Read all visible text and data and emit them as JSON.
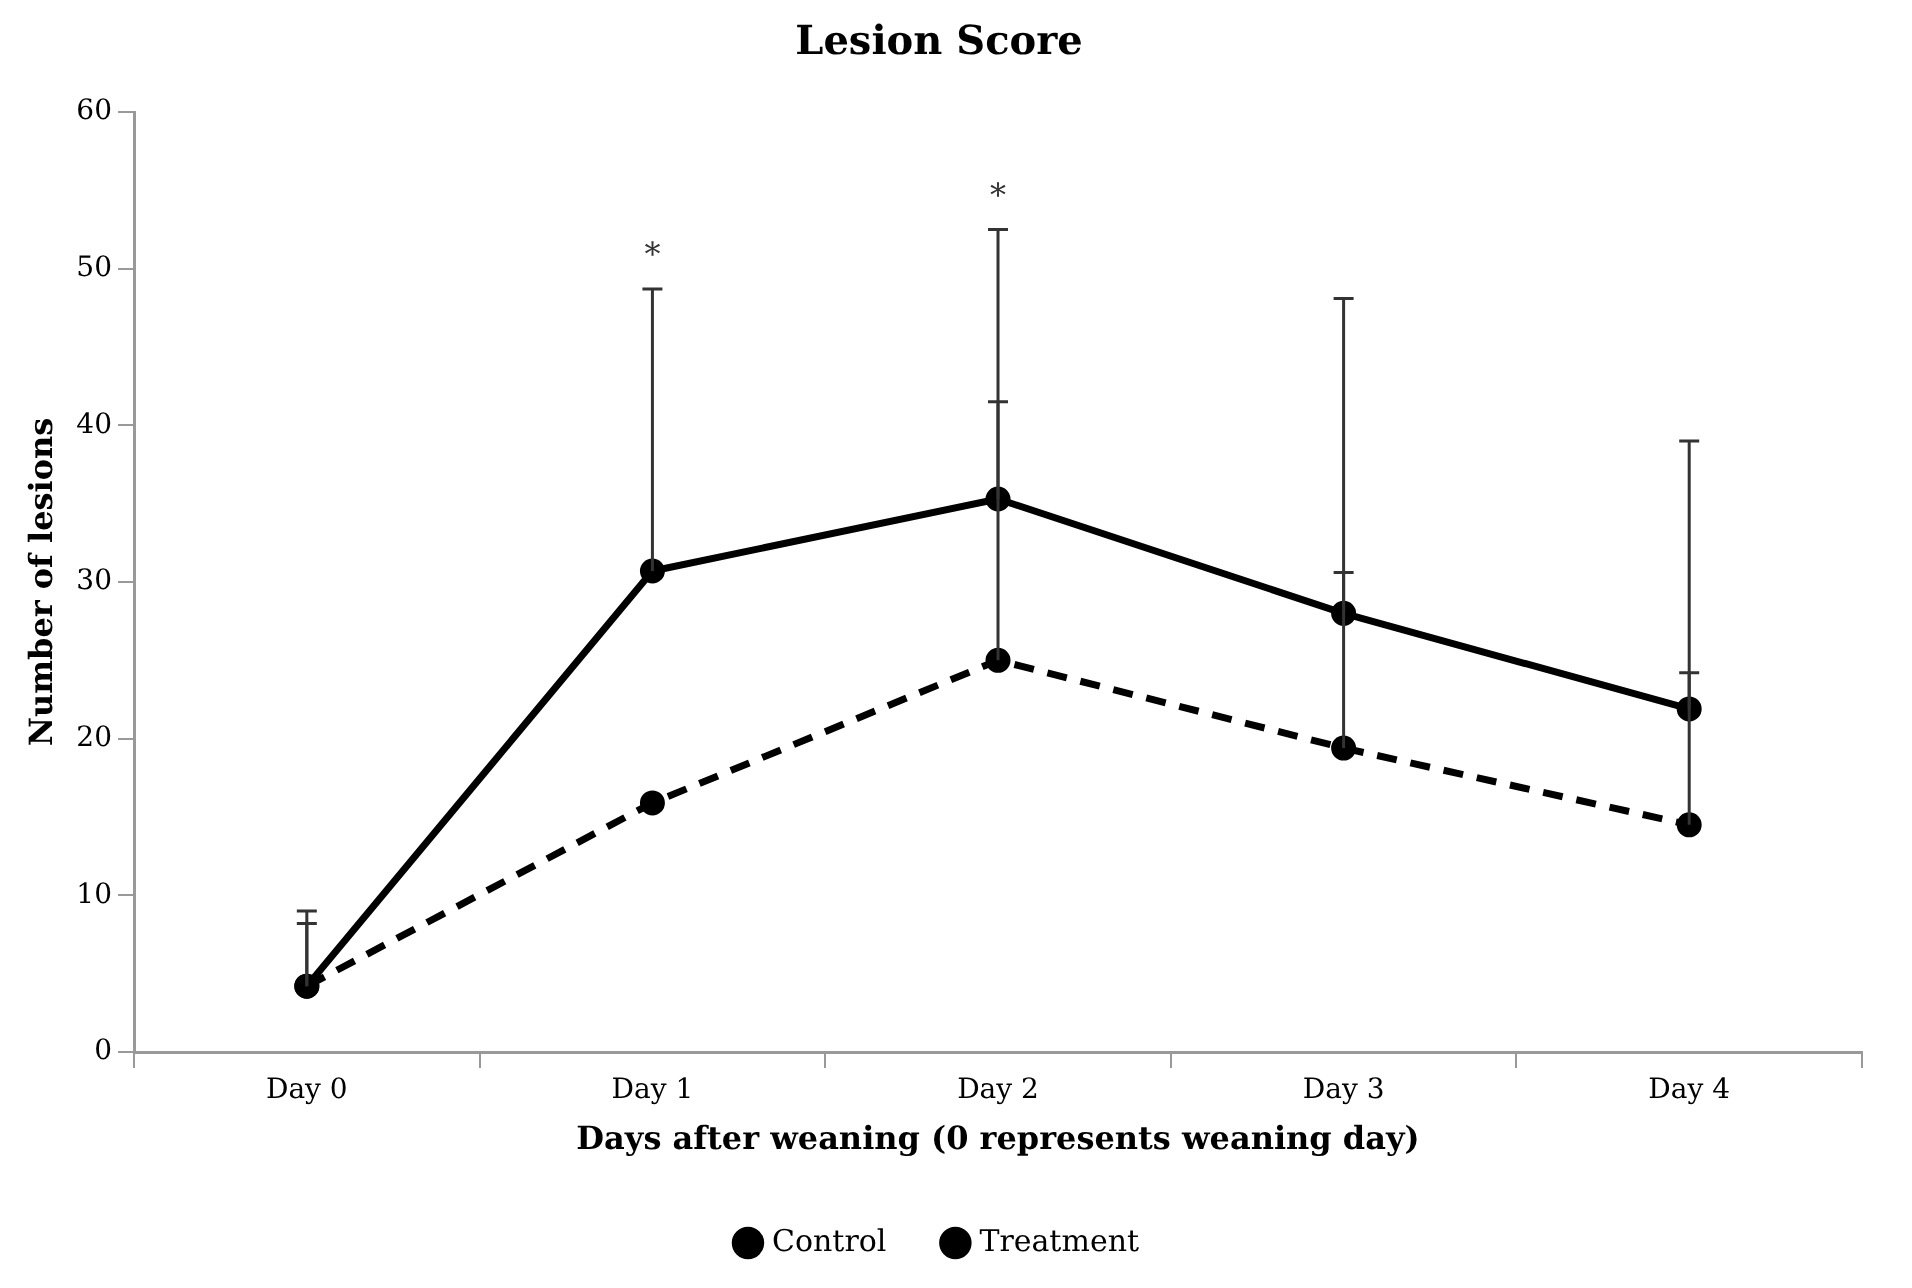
{
  "chart_data": {
    "type": "line",
    "title": "Lesion Score",
    "xlabel": "Days after weaning (0 represents weaning day)",
    "ylabel": "Number of lesions",
    "categories": [
      "Day 0",
      "Day 1",
      "Day 2",
      "Day 3",
      "Day 4"
    ],
    "series": [
      {
        "name": "Control",
        "color": "#000000",
        "line_style": "solid",
        "values": [
          4.2,
          30.7,
          35.3,
          28.0,
          21.9
        ],
        "errors": [
          [
            4.2,
            9.0
          ],
          [
            30.7,
            48.7
          ],
          [
            35.3,
            52.5
          ],
          [
            28.0,
            48.1
          ],
          [
            21.9,
            39.0
          ]
        ]
      },
      {
        "name": "Treatment",
        "color": "#000000",
        "line_style": "dashed",
        "values": [
          4.2,
          15.9,
          25.0,
          19.4,
          14.5
        ],
        "errors": [
          [
            4.2,
            8.2
          ],
          null,
          [
            25.0,
            41.5
          ],
          [
            19.4,
            30.6
          ],
          [
            14.5,
            24.2
          ]
        ]
      }
    ],
    "ylim": [
      0,
      60
    ],
    "yticks": [
      0,
      10,
      20,
      30,
      40,
      50,
      60
    ],
    "grid": false,
    "legend": "bottom",
    "marker": "circle",
    "annotations": [
      "*",
      "*"
    ]
  }
}
